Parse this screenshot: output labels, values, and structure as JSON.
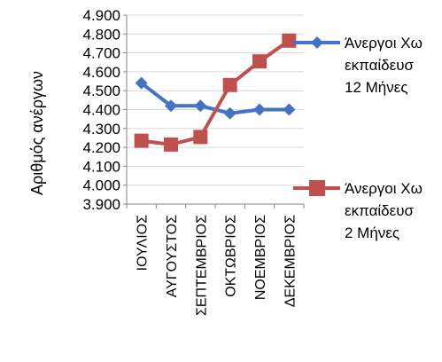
{
  "chart_data": {
    "type": "line",
    "title": "",
    "xlabel": "",
    "ylabel": "Αριθμός ανέργων",
    "ylim": [
      3900,
      4900
    ],
    "yticks": [
      "4.900",
      "4.800",
      "4.700",
      "4.600",
      "4.500",
      "4.400",
      "4.300",
      "4.200",
      "4.100",
      "4.000",
      "3.900"
    ],
    "categories": [
      "ΙΟΥΛΙΟΣ",
      "ΑΥΓΟΥΣΤΟΣ",
      "ΣΕΠΤΕΜΒΡΙΟΣ",
      "ΟΚΤΩΒΡΙΟΣ",
      "ΝΟΕΜΒΡΙΟΣ",
      "ΔΕΚΕΜΒΡΙΟΣ"
    ],
    "grid": true,
    "legend": "right",
    "series": [
      {
        "name_lines": [
          "Άνεργοι Χω",
          "εκπαίδευσ",
          "12 Μήνες"
        ],
        "color": "#4472C4",
        "marker": "diamond",
        "values": [
          4540,
          4420,
          4420,
          4380,
          4400,
          4400
        ]
      },
      {
        "name_lines": [
          "Άνεργοι Χω",
          "εκπαίδευσ",
          "2 Μήνες"
        ],
        "color": "#C0504D",
        "marker": "square",
        "values": [
          4235,
          4215,
          4255,
          4530,
          4655,
          4765
        ]
      }
    ]
  }
}
